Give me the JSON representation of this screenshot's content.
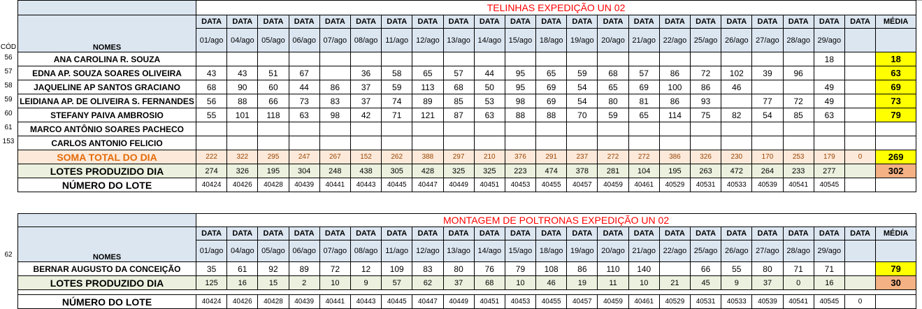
{
  "section1": {
    "title": "TELINHAS EXPEDIÇÃO UN 02",
    "cod_label": "CÓD",
    "names_label": "NOMES",
    "data_label": "DATA",
    "media_label": "MÉDIA",
    "dates": [
      "01/ago",
      "04/ago",
      "05/ago",
      "06/ago",
      "07/ago",
      "08/ago",
      "11/ago",
      "12/ago",
      "13/ago",
      "14/ago",
      "15/ago",
      "18/ago",
      "19/ago",
      "20/ago",
      "21/ago",
      "22/ago",
      "25/ago",
      "26/ago",
      "27/ago",
      "28/ago",
      "29/ago",
      ""
    ],
    "rows": [
      {
        "cod": "56",
        "name": "ANA CAROLINA R. SOUZA",
        "values": [
          "",
          "",
          "",
          "",
          "",
          "",
          "",
          "",
          "",
          "",
          "",
          "",
          "",
          "",
          "",
          "",
          "",
          "",
          "",
          "",
          "18",
          ""
        ],
        "avg": "18"
      },
      {
        "cod": "57",
        "name": "EDNA AP. SOUZA SOARES OLIVEIRA",
        "values": [
          "43",
          "43",
          "51",
          "67",
          "",
          "36",
          "58",
          "65",
          "57",
          "44",
          "95",
          "65",
          "59",
          "68",
          "57",
          "86",
          "72",
          "102",
          "39",
          "96",
          "",
          ""
        ],
        "avg": "63"
      },
      {
        "cod": "58",
        "name": "JAQUELINE AP SANTOS GRACIANO",
        "values": [
          "68",
          "90",
          "60",
          "44",
          "86",
          "37",
          "59",
          "113",
          "68",
          "50",
          "95",
          "69",
          "54",
          "65",
          "69",
          "100",
          "86",
          "46",
          "",
          "",
          "49",
          ""
        ],
        "avg": "69"
      },
      {
        "cod": "59",
        "name": "LEIDIANA AP. DE OLIVEIRA S. FERNANDES",
        "values": [
          "56",
          "88",
          "66",
          "73",
          "83",
          "37",
          "74",
          "89",
          "85",
          "53",
          "98",
          "69",
          "54",
          "80",
          "81",
          "86",
          "93",
          "",
          "77",
          "72",
          "49",
          ""
        ],
        "avg": "73"
      },
      {
        "cod": "60",
        "name": "STEFANY PAIVA AMBROSIO",
        "values": [
          "55",
          "101",
          "118",
          "63",
          "98",
          "42",
          "71",
          "121",
          "87",
          "63",
          "88",
          "88",
          "70",
          "59",
          "65",
          "114",
          "75",
          "82",
          "54",
          "85",
          "63",
          ""
        ],
        "avg": "79"
      },
      {
        "cod": "61",
        "name": "MARCO ANTÔNIO SOARES PACHECO",
        "values": [
          "",
          "",
          "",
          "",
          "",
          "",
          "",
          "",
          "",
          "",
          "",
          "",
          "",
          "",
          "",
          "",
          "",
          "",
          "",
          "",
          "",
          ""
        ],
        "avg": ""
      },
      {
        "cod": "153",
        "name": "CARLOS ANTONIO FELICIO",
        "values": [
          "",
          "",
          "",
          "",
          "",
          "",
          "",
          "",
          "",
          "",
          "",
          "",
          "",
          "",
          "",
          "",
          "",
          "",
          "",
          "",
          "",
          ""
        ],
        "avg": ""
      }
    ],
    "soma": {
      "label": "SOMA TOTAL DO DIA",
      "values": [
        "222",
        "322",
        "295",
        "247",
        "267",
        "152",
        "262",
        "388",
        "297",
        "210",
        "376",
        "291",
        "237",
        "272",
        "272",
        "386",
        "326",
        "230",
        "170",
        "253",
        "179",
        "0"
      ],
      "avg": "269"
    },
    "lotes": {
      "label": "LOTES PRODUZIDO DIA",
      "values": [
        "274",
        "326",
        "195",
        "304",
        "248",
        "438",
        "305",
        "428",
        "325",
        "325",
        "223",
        "474",
        "378",
        "281",
        "104",
        "195",
        "263",
        "472",
        "264",
        "233",
        "277",
        ""
      ],
      "avg": "302"
    },
    "numero": {
      "label": "NÚMERO DO LOTE",
      "values": [
        "40424",
        "40426",
        "40428",
        "40439",
        "40441",
        "40443",
        "40445",
        "40447",
        "40449",
        "40451",
        "40453",
        "40455",
        "40457",
        "40459",
        "40461",
        "40529",
        "40531",
        "40533",
        "40539",
        "40541",
        "40545",
        ""
      ],
      "avg": ""
    }
  },
  "section2": {
    "title": "MONTAGEM DE POLTRONAS EXPEDIÇÃO UN 02",
    "names_label": "NOMES",
    "data_label": "DATA",
    "media_label": "MÉDIA",
    "dates": [
      "01/ago",
      "04/ago",
      "05/ago",
      "06/ago",
      "07/ago",
      "08/ago",
      "11/ago",
      "12/ago",
      "13/ago",
      "14/ago",
      "15/ago",
      "18/ago",
      "19/ago",
      "20/ago",
      "21/ago",
      "22/ago",
      "25/ago",
      "26/ago",
      "27/ago",
      "28/ago",
      "29/ago",
      ""
    ],
    "row": {
      "cod": "62",
      "name": "BERNAR AUGUSTO DA CONCEIÇÃO",
      "values": [
        "35",
        "61",
        "92",
        "89",
        "72",
        "12",
        "109",
        "83",
        "80",
        "76",
        "79",
        "108",
        "86",
        "110",
        "140",
        "",
        "66",
        "55",
        "80",
        "71",
        "71",
        ""
      ],
      "avg": "79"
    },
    "lotes": {
      "label": "LOTES PRODUZIDO DIA",
      "values": [
        "125",
        "16",
        "15",
        "2",
        "10",
        "9",
        "57",
        "62",
        "37",
        "68",
        "10",
        "46",
        "19",
        "11",
        "10",
        "21",
        "45",
        "9",
        "37",
        "0",
        "16",
        ""
      ],
      "avg": "30"
    },
    "numero": {
      "label": "NÚMERO DO LOTE",
      "values": [
        "40424",
        "40426",
        "40428",
        "40439",
        "40441",
        "40443",
        "40445",
        "40447",
        "40449",
        "40451",
        "40453",
        "40455",
        "40457",
        "40459",
        "40461",
        "40529",
        "40531",
        "40533",
        "40539",
        "40541",
        "40545",
        "0"
      ],
      "avg": ""
    }
  }
}
